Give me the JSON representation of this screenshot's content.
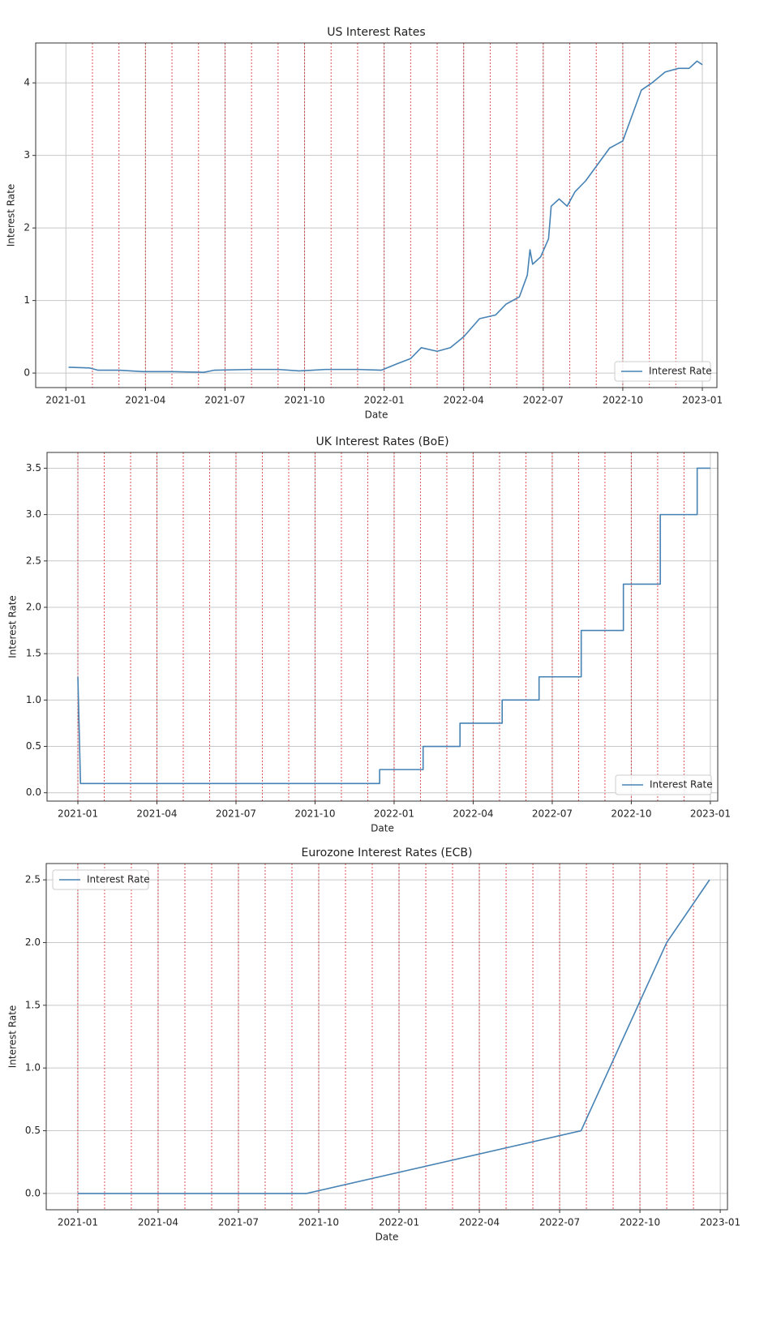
{
  "chart_data": [
    {
      "type": "line",
      "title": "US Interest Rates",
      "xlabel": "Date",
      "ylabel": "Interest Rate",
      "x": [
        0.1,
        0.9,
        1.2,
        2.0,
        2.9,
        4.0,
        5.2,
        5.6,
        7.0,
        8.0,
        8.8,
        9.8,
        11.0,
        11.9,
        12.5,
        13.0,
        13.4,
        14.0,
        14.5,
        15.0,
        15.6,
        16.2,
        16.6,
        17.1,
        17.4,
        17.5,
        17.6,
        17.9,
        18.2,
        18.3,
        18.6,
        18.9,
        19.2,
        19.6,
        20.0,
        20.5,
        21.0,
        21.4,
        21.7,
        22.1,
        22.6,
        23.1,
        23.5,
        23.8,
        24.0
      ],
      "series": [
        {
          "name": "Interest Rate",
          "color": "#4682b4",
          "values": [
            0.08,
            0.07,
            0.04,
            0.04,
            0.02,
            0.02,
            0.01,
            0.04,
            0.05,
            0.05,
            0.03,
            0.05,
            0.05,
            0.04,
            0.13,
            0.2,
            0.35,
            0.3,
            0.35,
            0.5,
            0.75,
            0.8,
            0.95,
            1.05,
            1.35,
            1.7,
            1.5,
            1.6,
            1.85,
            2.3,
            2.4,
            2.3,
            2.5,
            2.65,
            2.85,
            3.1,
            3.2,
            3.6,
            3.9,
            4.0,
            4.15,
            4.2,
            4.2,
            4.3,
            4.25
          ]
        }
      ],
      "xlim": [
        -1.14,
        24.55
      ],
      "xticks": [
        {
          "value": 0,
          "label": "2021-01"
        },
        {
          "value": 3,
          "label": "2021-04"
        },
        {
          "value": 6,
          "label": "2021-07"
        },
        {
          "value": 9,
          "label": "2021-10"
        },
        {
          "value": 12,
          "label": "2022-01"
        },
        {
          "value": 15,
          "label": "2022-04"
        },
        {
          "value": 18,
          "label": "2022-07"
        },
        {
          "value": 21,
          "label": "2022-10"
        },
        {
          "value": 24,
          "label": "2023-01"
        }
      ],
      "ylim": [
        -0.2,
        4.55
      ],
      "yticks": [
        0,
        1,
        2,
        3,
        4
      ],
      "vlines": [
        1,
        2,
        3,
        4,
        5,
        6,
        7,
        8,
        9,
        10,
        11,
        12,
        13,
        14,
        15,
        16,
        17,
        18,
        19,
        20,
        21,
        22,
        23
      ],
      "grid": true,
      "legend": "lower right"
    },
    {
      "type": "line",
      "title": "UK Interest Rates (BoE)",
      "xlabel": "Date",
      "ylabel": "Interest Rate",
      "x": [
        0.0,
        0.1,
        11.45,
        11.45,
        13.1,
        13.1,
        14.5,
        14.5,
        16.1,
        16.1,
        17.5,
        17.5,
        19.1,
        19.1,
        20.7,
        20.7,
        22.1,
        22.1,
        23.5,
        23.5,
        24.0
      ],
      "series": [
        {
          "name": "Interest Rate",
          "color": "#4682b4",
          "values": [
            1.25,
            0.1,
            0.1,
            0.25,
            0.25,
            0.5,
            0.5,
            0.75,
            0.75,
            1.0,
            1.0,
            1.25,
            1.25,
            1.75,
            1.75,
            2.25,
            2.25,
            3.0,
            3.0,
            3.5,
            3.5
          ]
        }
      ],
      "xlim": [
        -1.17,
        24.28
      ],
      "xticks": [
        {
          "value": 0,
          "label": "2021-01"
        },
        {
          "value": 3,
          "label": "2021-04"
        },
        {
          "value": 6,
          "label": "2021-07"
        },
        {
          "value": 9,
          "label": "2021-10"
        },
        {
          "value": 12,
          "label": "2022-01"
        },
        {
          "value": 15,
          "label": "2022-04"
        },
        {
          "value": 18,
          "label": "2022-07"
        },
        {
          "value": 21,
          "label": "2022-10"
        },
        {
          "value": 24,
          "label": "2023-01"
        }
      ],
      "ylim": [
        -0.09,
        3.67
      ],
      "yticks": [
        {
          "value": 0,
          "label": "0.0"
        },
        0.5,
        {
          "value": 1,
          "label": "1.0"
        },
        1.5,
        {
          "value": 2,
          "label": "2.0"
        },
        2.5,
        {
          "value": 3,
          "label": "3.0"
        },
        3.5
      ],
      "vlines": [
        0,
        1,
        2,
        3,
        4,
        5,
        6,
        7,
        8,
        9,
        10,
        11,
        12,
        13,
        14,
        15,
        16,
        17,
        18,
        19,
        20,
        21,
        22,
        23
      ],
      "grid": true,
      "legend": "lower right"
    },
    {
      "type": "line",
      "title": "Eurozone Interest Rates (ECB)",
      "xlabel": "Date",
      "ylabel": "Interest Rate",
      "x": [
        0.0,
        8.55,
        18.8,
        22.0,
        23.6
      ],
      "series": [
        {
          "name": "Interest Rate",
          "color": "#4682b4",
          "values": [
            0.0,
            0.0,
            0.5,
            2.0,
            2.5
          ]
        }
      ],
      "xlim": [
        -1.18,
        24.27
      ],
      "xticks": [
        {
          "value": 0,
          "label": "2021-01"
        },
        {
          "value": 3,
          "label": "2021-04"
        },
        {
          "value": 6,
          "label": "2021-07"
        },
        {
          "value": 9,
          "label": "2021-10"
        },
        {
          "value": 12,
          "label": "2022-01"
        },
        {
          "value": 15,
          "label": "2022-04"
        },
        {
          "value": 18,
          "label": "2022-07"
        },
        {
          "value": 21,
          "label": "2022-10"
        },
        {
          "value": 24,
          "label": "2023-01"
        }
      ],
      "ylim": [
        -0.13,
        2.63
      ],
      "yticks": [
        {
          "value": 0,
          "label": "0.0"
        },
        0.5,
        {
          "value": 1,
          "label": "1.0"
        },
        1.5,
        {
          "value": 2,
          "label": "2.0"
        },
        2.5
      ],
      "vlines": [
        0,
        1,
        2,
        3,
        4,
        5,
        6,
        7,
        8,
        9,
        10,
        11,
        12,
        13,
        14,
        15,
        16,
        17,
        18,
        19,
        20,
        21,
        22,
        23
      ],
      "grid": true,
      "legend": "upper left"
    }
  ]
}
